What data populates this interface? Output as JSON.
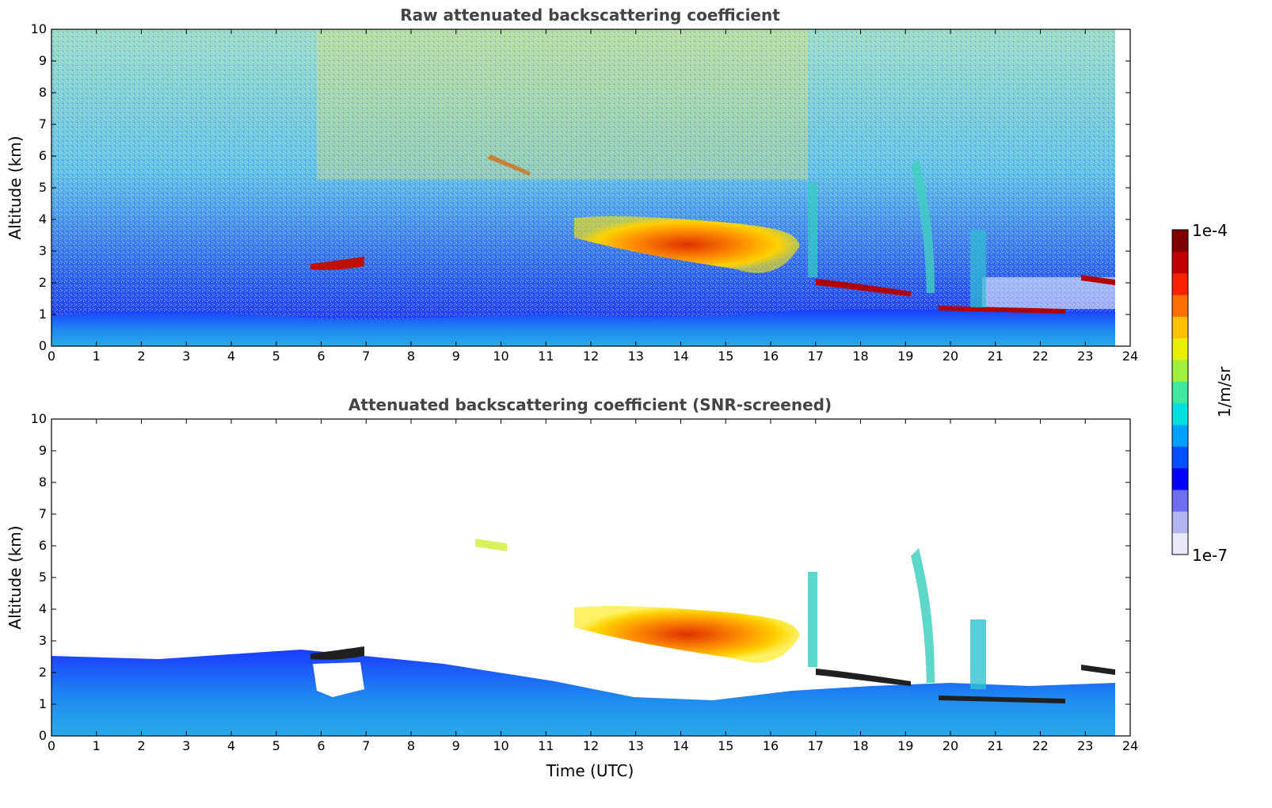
{
  "chart_data": [
    {
      "type": "heatmap",
      "title": "Raw attenuated backscattering coefficient",
      "xlabel": "",
      "ylabel": "Altitude (km)",
      "xlim": [
        0,
        24
      ],
      "ylim": [
        0,
        10
      ],
      "xticks": [
        "0",
        "1",
        "2",
        "3",
        "4",
        "5",
        "6",
        "7",
        "8",
        "9",
        "10",
        "11",
        "12",
        "13",
        "14",
        "15",
        "16",
        "17",
        "18",
        "19",
        "20",
        "21",
        "22",
        "23",
        "24"
      ],
      "yticks": [
        "0",
        "1",
        "2",
        "3",
        "4",
        "5",
        "6",
        "7",
        "8",
        "9",
        "10"
      ],
      "data_end_time": 23.7,
      "features": [
        {
          "name": "boundary-layer",
          "time": [
            0,
            23.7
          ],
          "altitude": [
            0,
            1.2
          ]
        },
        {
          "name": "cloud-layer-12-17h",
          "time": [
            11.6,
            16.6
          ],
          "altitude": [
            2.3,
            4.0
          ]
        },
        {
          "name": "cloud-layer-6-7h",
          "time": [
            5.8,
            7.0
          ],
          "altitude": [
            2.4,
            2.8
          ]
        },
        {
          "name": "cloud-layer-17-19h",
          "time": [
            17.0,
            19.2
          ],
          "altitude": [
            1.7,
            2.1
          ]
        },
        {
          "name": "cloud-layer-20-22h",
          "time": [
            20.0,
            22.6
          ],
          "altitude": [
            1.1,
            1.25
          ]
        },
        {
          "name": "cloud-layer-23h",
          "time": [
            22.9,
            23.7
          ],
          "altitude": [
            1.9,
            2.2
          ]
        }
      ]
    },
    {
      "type": "heatmap",
      "title": "Attenuated backscattering coefficient (SNR-screened)",
      "xlabel": "Time (UTC)",
      "ylabel": "Altitude (km)",
      "xlim": [
        0,
        24
      ],
      "ylim": [
        0,
        10
      ],
      "xticks": [
        "0",
        "1",
        "2",
        "3",
        "4",
        "5",
        "6",
        "7",
        "8",
        "9",
        "10",
        "11",
        "12",
        "13",
        "14",
        "15",
        "16",
        "17",
        "18",
        "19",
        "20",
        "21",
        "22",
        "23",
        "24"
      ],
      "yticks": [
        "0",
        "1",
        "2",
        "3",
        "4",
        "5",
        "6",
        "7",
        "8",
        "9",
        "10"
      ],
      "data_end_time": 23.7
    }
  ],
  "colorbar": {
    "label": "1/m/sr",
    "max_label": "1e-4",
    "min_label": "1e-7",
    "colors": [
      "#e8e8f8",
      "#b4b4f0",
      "#6e6ef0",
      "#0000ff",
      "#0050ff",
      "#00a0ff",
      "#00e0e0",
      "#40e8a0",
      "#a0f040",
      "#e8f000",
      "#ffc000",
      "#ff7000",
      "#ff2000",
      "#c00000",
      "#800000"
    ]
  }
}
